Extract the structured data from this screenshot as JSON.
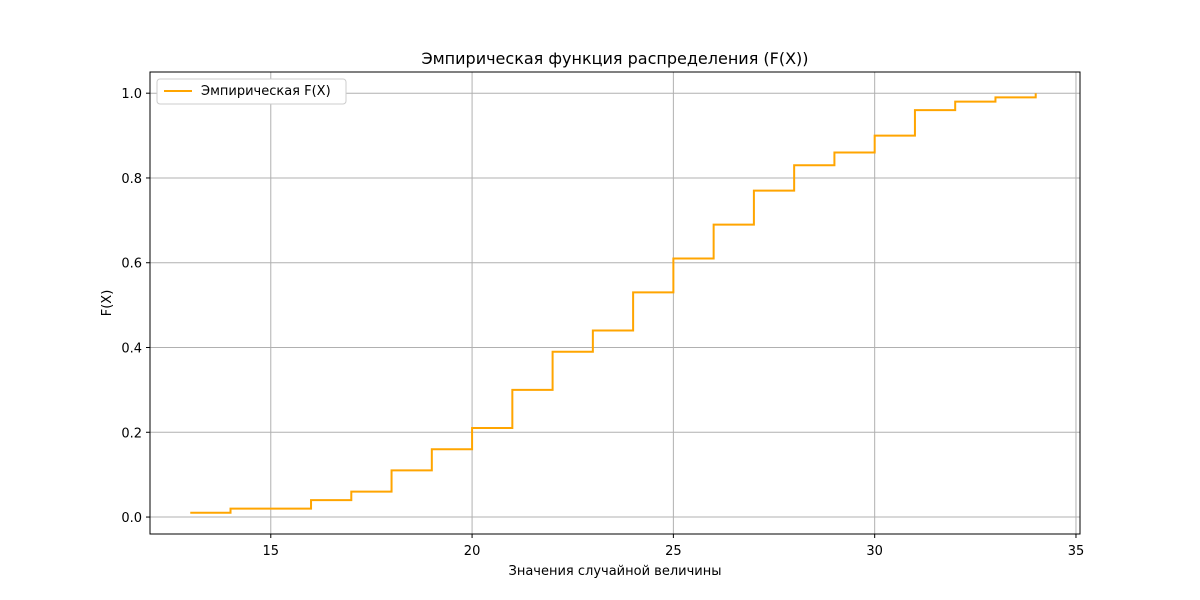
{
  "chart_data": {
    "type": "line",
    "title": "Эмпирическая функция распределения (F(X))",
    "xlabel": "Значения случайной величины",
    "ylabel": "F(X)",
    "xlim": [
      12,
      35.1
    ],
    "ylim": [
      -0.04,
      1.05
    ],
    "xticks": [
      15,
      20,
      25,
      30,
      35
    ],
    "yticks": [
      0.0,
      0.2,
      0.4,
      0.6,
      0.8,
      1.0
    ],
    "xtick_labels": [
      "15",
      "20",
      "25",
      "30",
      "35"
    ],
    "ytick_labels": [
      "0.0",
      "0.2",
      "0.4",
      "0.6",
      "0.8",
      "1.0"
    ],
    "grid": true,
    "legend_position": "upper-left",
    "series": [
      {
        "name": "Эмпирическая F(X)",
        "color": "#ffa500",
        "step": "post",
        "x": [
          13,
          14,
          15,
          16,
          17,
          18,
          19,
          20,
          21,
          22,
          23,
          24,
          25,
          26,
          27,
          28,
          29,
          30,
          31,
          32,
          33,
          34
        ],
        "y": [
          0.01,
          0.02,
          0.02,
          0.04,
          0.06,
          0.11,
          0.16,
          0.21,
          0.3,
          0.39,
          0.44,
          0.53,
          0.61,
          0.69,
          0.77,
          0.83,
          0.86,
          0.9,
          0.96,
          0.98,
          0.99,
          1.0
        ]
      }
    ]
  }
}
